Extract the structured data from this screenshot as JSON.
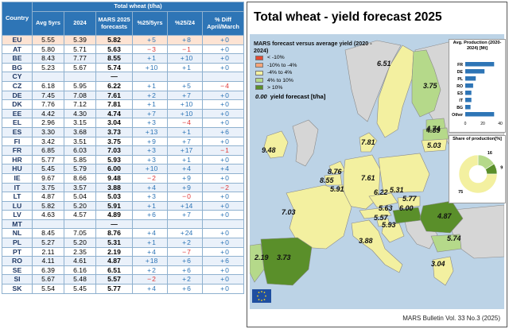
{
  "table": {
    "header_top": "Total wheat (t/ha)",
    "country_label": "Country",
    "columns": [
      "Avg 5yrs",
      "2024",
      "MARS 2025 forecasts",
      "%25/5yrs",
      "%25/24",
      "% Diff April/March"
    ],
    "rows": [
      {
        "c": "EU",
        "avg": "5.55",
        "y24": "5.39",
        "f": "5.82",
        "s1": "+",
        "v1": "5",
        "s2": "+",
        "v2": "8",
        "s3": "+",
        "v3": "0"
      },
      {
        "c": "AT",
        "avg": "5.80",
        "y24": "5.71",
        "f": "5.63",
        "s1": "−",
        "v1": "3",
        "s2": "−",
        "v2": "1",
        "s3": "+",
        "v3": "0"
      },
      {
        "c": "BE",
        "avg": "8.43",
        "y24": "7.77",
        "f": "8.55",
        "s1": "+",
        "v1": "1",
        "s2": "+",
        "v2": "10",
        "s3": "+",
        "v3": "0"
      },
      {
        "c": "BG",
        "avg": "5.23",
        "y24": "5.67",
        "f": "5.74",
        "s1": "+",
        "v1": "10",
        "s2": "+",
        "v2": "1",
        "s3": "+",
        "v3": "0"
      },
      {
        "c": "CY",
        "avg": "",
        "y24": "",
        "f": "—",
        "s1": "",
        "v1": "",
        "s2": "",
        "v2": "",
        "s3": "",
        "v3": ""
      },
      {
        "c": "CZ",
        "avg": "6.18",
        "y24": "5.95",
        "f": "6.22",
        "s1": "+",
        "v1": "1",
        "s2": "+",
        "v2": "5",
        "s3": "−",
        "v3": "4"
      },
      {
        "c": "DE",
        "avg": "7.45",
        "y24": "7.08",
        "f": "7.61",
        "s1": "+",
        "v1": "2",
        "s2": "+",
        "v2": "7",
        "s3": "+",
        "v3": "0"
      },
      {
        "c": "DK",
        "avg": "7.76",
        "y24": "7.12",
        "f": "7.81",
        "s1": "+",
        "v1": "1",
        "s2": "+",
        "v2": "10",
        "s3": "+",
        "v3": "0"
      },
      {
        "c": "EE",
        "avg": "4.42",
        "y24": "4.30",
        "f": "4.74",
        "s1": "+",
        "v1": "7",
        "s2": "+",
        "v2": "10",
        "s3": "+",
        "v3": "0"
      },
      {
        "c": "EL",
        "avg": "2.96",
        "y24": "3.15",
        "f": "3.04",
        "s1": "+",
        "v1": "3",
        "s2": "−",
        "v2": "4",
        "s3": "+",
        "v3": "0"
      },
      {
        "c": "ES",
        "avg": "3.30",
        "y24": "3.68",
        "f": "3.73",
        "s1": "+",
        "v1": "13",
        "s2": "+",
        "v2": "1",
        "s3": "+",
        "v3": "6"
      },
      {
        "c": "FI",
        "avg": "3.42",
        "y24": "3.51",
        "f": "3.75",
        "s1": "+",
        "v1": "9",
        "s2": "+",
        "v2": "7",
        "s3": "+",
        "v3": "0"
      },
      {
        "c": "FR",
        "avg": "6.85",
        "y24": "6.03",
        "f": "7.03",
        "s1": "+",
        "v1": "3",
        "s2": "+",
        "v2": "17",
        "s3": "−",
        "v3": "1"
      },
      {
        "c": "HR",
        "avg": "5.77",
        "y24": "5.85",
        "f": "5.93",
        "s1": "+",
        "v1": "3",
        "s2": "+",
        "v2": "1",
        "s3": "+",
        "v3": "0"
      },
      {
        "c": "HU",
        "avg": "5.45",
        "y24": "5.79",
        "f": "6.00",
        "s1": "+",
        "v1": "10",
        "s2": "+",
        "v2": "4",
        "s3": "+",
        "v3": "4"
      },
      {
        "c": "IE",
        "avg": "9.67",
        "y24": "8.66",
        "f": "9.48",
        "s1": "−",
        "v1": "2",
        "s2": "+",
        "v2": "9",
        "s3": "+",
        "v3": "0"
      },
      {
        "c": "IT",
        "avg": "3.75",
        "y24": "3.57",
        "f": "3.88",
        "s1": "+",
        "v1": "4",
        "s2": "+",
        "v2": "9",
        "s3": "−",
        "v3": "2"
      },
      {
        "c": "LT",
        "avg": "4.87",
        "y24": "5.04",
        "f": "5.03",
        "s1": "+",
        "v1": "3",
        "s2": "−",
        "v2": "0",
        "s3": "+",
        "v3": "0"
      },
      {
        "c": "LU",
        "avg": "5.82",
        "y24": "5.20",
        "f": "5.91",
        "s1": "+",
        "v1": "1",
        "s2": "+",
        "v2": "14",
        "s3": "+",
        "v3": "0"
      },
      {
        "c": "LV",
        "avg": "4.63",
        "y24": "4.57",
        "f": "4.89",
        "s1": "+",
        "v1": "6",
        "s2": "+",
        "v2": "7",
        "s3": "+",
        "v3": "0"
      },
      {
        "c": "MT",
        "avg": "",
        "y24": "",
        "f": "—",
        "s1": "",
        "v1": "",
        "s2": "",
        "v2": "",
        "s3": "",
        "v3": ""
      },
      {
        "c": "NL",
        "avg": "8.45",
        "y24": "7.05",
        "f": "8.76",
        "s1": "+",
        "v1": "4",
        "s2": "+",
        "v2": "24",
        "s3": "+",
        "v3": "0"
      },
      {
        "c": "PL",
        "avg": "5.27",
        "y24": "5.20",
        "f": "5.31",
        "s1": "+",
        "v1": "1",
        "s2": "+",
        "v2": "2",
        "s3": "+",
        "v3": "0"
      },
      {
        "c": "PT",
        "avg": "2.11",
        "y24": "2.35",
        "f": "2.19",
        "s1": "+",
        "v1": "4",
        "s2": "−",
        "v2": "7",
        "s3": "+",
        "v3": "0"
      },
      {
        "c": "RO",
        "avg": "4.11",
        "y24": "4.61",
        "f": "4.87",
        "s1": "+",
        "v1": "18",
        "s2": "+",
        "v2": "6",
        "s3": "+",
        "v3": "6"
      },
      {
        "c": "SE",
        "avg": "6.39",
        "y24": "6.16",
        "f": "6.51",
        "s1": "+",
        "v1": "2",
        "s2": "+",
        "v2": "6",
        "s3": "+",
        "v3": "0"
      },
      {
        "c": "SI",
        "avg": "5.67",
        "y24": "5.48",
        "f": "5.57",
        "s1": "−",
        "v1": "2",
        "s2": "+",
        "v2": "2",
        "s3": "+",
        "v3": "0"
      },
      {
        "c": "SK",
        "avg": "5.54",
        "y24": "5.45",
        "f": "5.77",
        "s1": "+",
        "v1": "4",
        "s2": "+",
        "v2": "6",
        "s3": "+",
        "v3": "0"
      }
    ]
  },
  "map": {
    "title": "Total wheat - yield forecast 2025",
    "legend_title": "MARS forecast versus average yield (2020 - 2024)",
    "legend_items": [
      {
        "label": "< -10%",
        "color": "#e34a33"
      },
      {
        "label": "-10% to -4%",
        "color": "#f6a57a"
      },
      {
        "label": "-4% to 4%",
        "color": "#f3f0a0"
      },
      {
        "label": "4% to 10%",
        "color": "#b5d98a"
      },
      {
        "label": "> 10%",
        "color": "#5a8f2a"
      }
    ],
    "yield_note_value": "0.00",
    "yield_note_label": "yield forecast [t/ha]",
    "labels": [
      {
        "t": "6.51"
      },
      {
        "t": "3.75"
      },
      {
        "t": "4.74"
      },
      {
        "t": "4.89"
      },
      {
        "t": "5.03"
      },
      {
        "t": "9.48"
      },
      {
        "t": "7.81"
      },
      {
        "t": "8.76"
      },
      {
        "t": "8.55"
      },
      {
        "t": "5.91"
      },
      {
        "t": "7.61"
      },
      {
        "t": "5.31"
      },
      {
        "t": "6.22"
      },
      {
        "t": "5.77"
      },
      {
        "t": "7.03"
      },
      {
        "t": "5.63"
      },
      {
        "t": "6.00"
      },
      {
        "t": "4.87"
      },
      {
        "t": "5.57"
      },
      {
        "t": "5.93"
      },
      {
        "t": "5.74"
      },
      {
        "t": "3.88"
      },
      {
        "t": "2.19"
      },
      {
        "t": "3.73"
      },
      {
        "t": "3.04"
      }
    ],
    "prod_title": "Avg. Production (2020-2024) [Mt]",
    "prod": [
      {
        "c": "FR",
        "v": 33
      },
      {
        "c": "DE",
        "v": 22
      },
      {
        "c": "PL",
        "v": 12
      },
      {
        "c": "RO",
        "v": 9
      },
      {
        "c": "ES",
        "v": 7
      },
      {
        "c": "IT",
        "v": 7
      },
      {
        "c": "BG",
        "v": 6
      },
      {
        "c": "Other",
        "v": 33
      }
    ],
    "prod_ticks": [
      "0",
      "20",
      "40"
    ],
    "share_title": "Share of production[%]",
    "share": [
      {
        "v": 16,
        "color": "#b5d98a"
      },
      {
        "v": 9,
        "color": "#5a8f2a"
      },
      {
        "v": 75,
        "color": "#f3f0a0"
      }
    ],
    "bulletin": "MARS Bulletin Vol. 33 No.3 (2025)"
  }
}
